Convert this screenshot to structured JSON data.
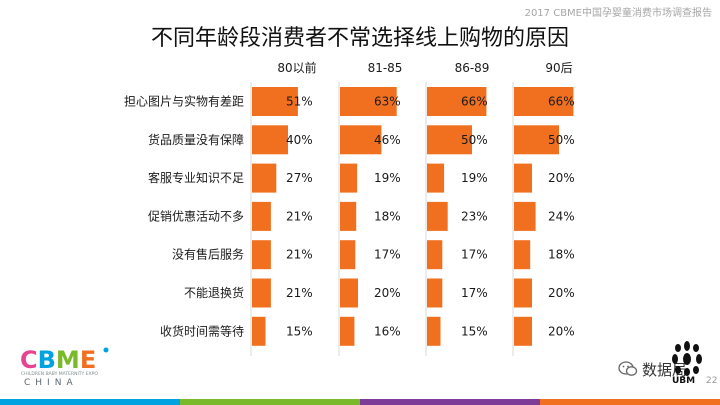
{
  "report_tag": "2017 CBME中国孕婴童消费市场调查报告",
  "page_number": "22",
  "wechat_name": "数据局",
  "logos": {
    "cbme": "CBME",
    "cbme_sub": "CHILDREN BABY MATERNITY EXPO",
    "cbme_china": "CHINA",
    "ubm": "UBM"
  },
  "colors": {
    "bar": "#f07020",
    "footer": [
      "#00a3e0",
      "#7ab929",
      "#7d3c98",
      "#f07020"
    ]
  },
  "chart_data": {
    "type": "bar",
    "orientation": "horizontal",
    "layout": "small-multiples",
    "title": "不同年龄段消费者不常选择线上购物的原因",
    "categories": [
      "担心图片与实物有差距",
      "货品质量没有保障",
      "客服专业知识不足",
      "促销优惠活动不多",
      "没有售后服务",
      "不能退换货",
      "收货时间需等待"
    ],
    "series": [
      {
        "name": "80以前",
        "values": [
          51,
          40,
          27,
          21,
          21,
          21,
          15
        ]
      },
      {
        "name": "81-85",
        "values": [
          63,
          46,
          19,
          18,
          17,
          20,
          16
        ]
      },
      {
        "name": "86-89",
        "values": [
          66,
          50,
          19,
          23,
          17,
          17,
          15
        ]
      },
      {
        "name": "90后",
        "values": [
          66,
          50,
          20,
          24,
          18,
          20,
          20
        ]
      }
    ],
    "value_suffix": "%",
    "xlim": [
      0,
      100
    ],
    "grid": false,
    "legend": "none"
  }
}
